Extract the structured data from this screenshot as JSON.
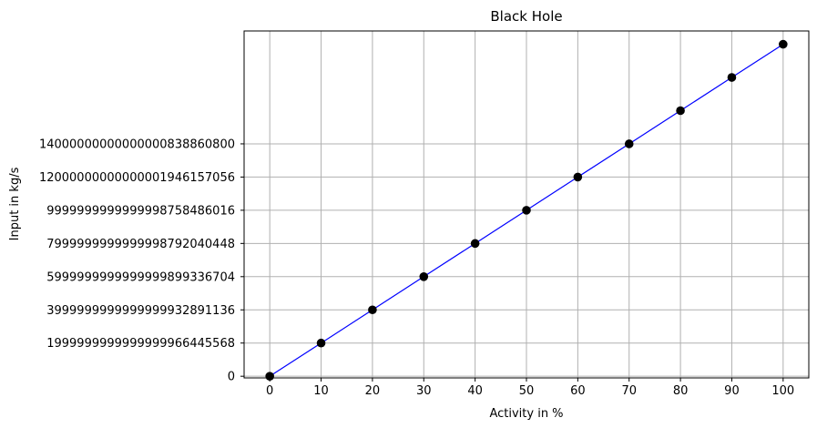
{
  "chart_data": {
    "type": "line",
    "title": "Black Hole",
    "xlabel": "Activity in %",
    "ylabel": "Input in kg/s",
    "x": [
      0,
      10,
      20,
      30,
      40,
      50,
      60,
      70,
      80,
      90,
      100
    ],
    "y": [
      0,
      2e+24,
      4e+24,
      6e+24,
      8e+24,
      1e+25,
      1.2e+25,
      1.4e+25,
      1.6e+25,
      1.8e+25,
      2e+25
    ],
    "xlim": [
      -5,
      105
    ],
    "ylim": [
      -1e+23,
      2.08e+25
    ],
    "xticks": [
      0,
      10,
      20,
      30,
      40,
      50,
      60,
      70,
      80,
      90,
      100
    ],
    "xtick_labels": [
      "0",
      "10",
      "20",
      "30",
      "40",
      "50",
      "60",
      "70",
      "80",
      "90",
      "100"
    ],
    "yticks": [
      0,
      2e+24,
      4e+24,
      6e+24,
      8e+24,
      1e+25,
      1.2e+25,
      1.4e+25
    ],
    "ytick_labels": [
      "0",
      "1999999999999999966445568",
      "3999999999999999932891136",
      "5999999999999999899336704",
      "7999999999999998792040448",
      "9999999999999998758486016",
      "12000000000000001946157056",
      "14000000000000000838860800"
    ],
    "grid": true,
    "line_color": "#0000ff",
    "marker_color": "#000000"
  }
}
